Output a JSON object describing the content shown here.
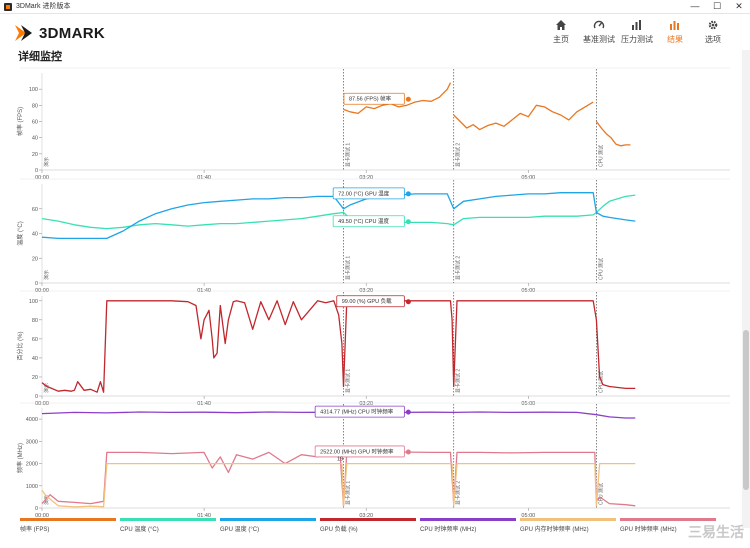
{
  "window": {
    "title": "3DMark 进阶版本",
    "minimize": "—",
    "maximize": "☐",
    "close": "✕"
  },
  "app": {
    "logo": "3DMARK"
  },
  "nav": [
    {
      "label": "主页",
      "icon": "home-icon"
    },
    {
      "label": "基准测试",
      "icon": "gauge-icon"
    },
    {
      "label": "压力测试",
      "icon": "stress-chart-icon"
    },
    {
      "label": "结果",
      "icon": "results-chart-icon",
      "active": true
    },
    {
      "label": "选项",
      "icon": "gear-icon"
    }
  ],
  "page": {
    "title": "详细监控"
  },
  "colors": {
    "accent": "#e87722"
  },
  "chart_data": [
    {
      "type": "line",
      "ylabel": "帧率 (FPS)",
      "ylim": [
        0,
        120
      ],
      "yticks": [
        0,
        20,
        40,
        60,
        80,
        100
      ],
      "xticks": [
        "00:00",
        "01:40",
        "03:20",
        "05:00"
      ],
      "xlim": [
        0,
        380
      ],
      "markers": [
        {
          "x": 0,
          "label": "演示"
        },
        {
          "x": 186,
          "label": "显卡测试 1"
        },
        {
          "x": 254,
          "label": "显卡测试 2"
        },
        {
          "x": 342,
          "label": "CPU 测试"
        }
      ],
      "series": [
        {
          "name": "帧率 (FPS)",
          "color": "#e87722",
          "x": [
            186,
            190,
            195,
            200,
            205,
            210,
            215,
            220,
            225,
            230,
            235,
            240,
            245,
            250,
            252
          ],
          "values": [
            75,
            72,
            70,
            78,
            76,
            80,
            82,
            78,
            80,
            84,
            86,
            85,
            90,
            100,
            108
          ]
        },
        {
          "name": "帧率 (FPS)",
          "color": "#e87722",
          "x": [
            254,
            258,
            262,
            266,
            270,
            275,
            280,
            285,
            290,
            295,
            300,
            305,
            310,
            315,
            320,
            325,
            330,
            335,
            340
          ],
          "values": [
            68,
            60,
            52,
            56,
            50,
            55,
            58,
            54,
            62,
            70,
            66,
            80,
            78,
            72,
            68,
            62,
            72,
            78,
            84
          ]
        },
        {
          "name": "帧率 (FPS)",
          "color": "#e87722",
          "x": [
            342,
            345,
            348,
            351,
            354,
            357,
            360,
            363
          ],
          "values": [
            60,
            52,
            45,
            40,
            32,
            30,
            31,
            31
          ]
        }
      ],
      "annotation": {
        "text": "87.56 (FPS) 帧率",
        "x": 226,
        "y": 87.56
      }
    },
    {
      "type": "line",
      "ylabel": "温度 (°C)",
      "ylim": [
        0,
        80
      ],
      "yticks": [
        0,
        20,
        40,
        60
      ],
      "xticks": [
        "00:00",
        "01:40",
        "03:20",
        "05:00"
      ],
      "xlim": [
        0,
        380
      ],
      "markers": [
        {
          "x": 0,
          "label": "演示"
        },
        {
          "x": 186,
          "label": "显卡测试 1"
        },
        {
          "x": 254,
          "label": "显卡测试 2"
        },
        {
          "x": 342,
          "label": "CPU 测试"
        }
      ],
      "series": [
        {
          "name": "CPU 温度 (°C)",
          "color": "#39e0b4",
          "x": [
            0,
            10,
            20,
            30,
            40,
            50,
            60,
            70,
            80,
            90,
            100,
            110,
            120,
            130,
            140,
            150,
            160,
            170,
            180,
            186,
            190,
            200,
            210,
            220,
            230,
            240,
            250,
            254,
            260,
            270,
            280,
            290,
            300,
            310,
            320,
            330,
            340,
            342,
            346,
            350,
            360,
            366
          ],
          "values": [
            52,
            50,
            47,
            45,
            44,
            45,
            47,
            48,
            47,
            46,
            47,
            48,
            48,
            49,
            50,
            51,
            52,
            54,
            56,
            57,
            52,
            50,
            49,
            49,
            49,
            49,
            48,
            47,
            52,
            53,
            53,
            53,
            53,
            54,
            54,
            54,
            55,
            57,
            62,
            66,
            70,
            71
          ]
        },
        {
          "name": "GPU 温度 (°C)",
          "color": "#1fa4e6",
          "x": [
            0,
            10,
            20,
            30,
            40,
            50,
            60,
            70,
            80,
            90,
            100,
            110,
            120,
            130,
            140,
            150,
            160,
            170,
            180,
            186,
            190,
            200,
            210,
            220,
            230,
            240,
            250,
            254,
            260,
            270,
            280,
            290,
            300,
            310,
            320,
            330,
            340,
            342,
            346,
            350,
            360,
            366
          ],
          "values": [
            37,
            36,
            36,
            36,
            36,
            42,
            50,
            56,
            60,
            63,
            65,
            66,
            67,
            68,
            68,
            69,
            69,
            70,
            70,
            60,
            63,
            68,
            70,
            71,
            72,
            72,
            72,
            60,
            66,
            68,
            70,
            71,
            72,
            72,
            73,
            73,
            73,
            57,
            54,
            53,
            51,
            50
          ]
        }
      ],
      "annotations": [
        {
          "text": "72.00 (°C) GPU 温度",
          "x": 226,
          "y": 72
        },
        {
          "text": "49.50 (°C) CPU 温度",
          "x": 226,
          "y": 49.5
        }
      ]
    },
    {
      "type": "line",
      "ylabel": "百分比 (%)",
      "ylim": [
        0,
        105
      ],
      "yticks": [
        0,
        20,
        40,
        60,
        80,
        100
      ],
      "xticks": [
        "00:00",
        "01:40",
        "03:20",
        "05:00"
      ],
      "xlim": [
        0,
        380
      ],
      "markers": [
        {
          "x": 0,
          "label": "演示"
        },
        {
          "x": 186,
          "label": "显卡测试 1"
        },
        {
          "x": 254,
          "label": "显卡测试 2"
        },
        {
          "x": 342,
          "label": "CPU 测试"
        }
      ],
      "series": [
        {
          "name": "GPU 负载 (%)",
          "color": "#c0282d",
          "x": [
            0,
            3,
            6,
            10,
            14,
            18,
            20,
            22,
            26,
            30,
            34,
            36,
            38,
            40,
            60,
            80,
            90,
            95,
            98,
            100,
            103,
            105,
            106,
            108,
            110,
            113,
            115,
            118,
            120,
            125,
            130,
            135,
            140,
            145,
            150,
            155,
            160,
            165,
            170,
            175,
            180,
            183,
            185,
            186,
            188,
            190,
            200,
            220,
            240,
            252,
            253,
            254,
            256,
            258,
            270,
            290,
            310,
            330,
            340,
            342,
            344,
            346,
            350,
            360,
            366
          ],
          "values": [
            14,
            10,
            8,
            5,
            6,
            5,
            6,
            15,
            6,
            7,
            4,
            15,
            4,
            100,
            100,
            100,
            99,
            95,
            60,
            80,
            90,
            60,
            40,
            45,
            95,
            55,
            80,
            99,
            100,
            98,
            70,
            99,
            80,
            100,
            75,
            99,
            80,
            90,
            100,
            98,
            100,
            85,
            55,
            10,
            100,
            100,
            100,
            100,
            100,
            100,
            80,
            10,
            100,
            100,
            100,
            100,
            100,
            100,
            100,
            80,
            20,
            12,
            10,
            8,
            8
          ]
        }
      ],
      "annotation": {
        "text": "99.00 (%) GPU 负载",
        "x": 226,
        "y": 99
      }
    },
    {
      "type": "line",
      "ylabel": "频率 (MHz)",
      "ylim": [
        0,
        4500
      ],
      "yticks": [
        0,
        1000,
        2000,
        3000,
        4000
      ],
      "xticks": [
        "00:00",
        "01:40",
        "03:20",
        "05:00"
      ],
      "xlim": [
        0,
        380
      ],
      "markers": [
        {
          "x": 0,
          "label": "演示"
        },
        {
          "x": 186,
          "label": "显卡测试 1"
        },
        {
          "x": 254,
          "label": "显卡测试 2"
        },
        {
          "x": 342,
          "label": "CPU 测试"
        }
      ],
      "series": [
        {
          "name": "CPU 时钟频率 (MHz)",
          "color": "#8a3fc9",
          "x": [
            0,
            20,
            40,
            60,
            80,
            100,
            120,
            140,
            160,
            180,
            186,
            200,
            220,
            240,
            254,
            270,
            290,
            310,
            330,
            342,
            350,
            360,
            366
          ],
          "values": [
            4250,
            4300,
            4280,
            4320,
            4300,
            4310,
            4290,
            4320,
            4300,
            4310,
            4300,
            4314,
            4300,
            4310,
            4300,
            4320,
            4300,
            4310,
            4300,
            4200,
            4100,
            4050,
            4050
          ]
        },
        {
          "name": "GPU 时钟频率 (MHz)",
          "color": "#e0798c",
          "x": [
            0,
            5,
            10,
            20,
            30,
            38,
            40,
            60,
            80,
            100,
            105,
            110,
            115,
            120,
            130,
            140,
            150,
            160,
            170,
            180,
            184,
            186,
            188,
            200,
            220,
            240,
            252,
            254,
            256,
            270,
            290,
            310,
            330,
            341,
            342,
            344,
            350,
            360,
            366
          ],
          "values": [
            200,
            600,
            300,
            250,
            200,
            300,
            2500,
            2500,
            2450,
            2500,
            1800,
            2300,
            1600,
            2400,
            2200,
            2500,
            2000,
            2400,
            2300,
            2500,
            2300,
            100,
            2500,
            2500,
            2520,
            2500,
            2500,
            200,
            2500,
            2500,
            2480,
            2500,
            2500,
            2500,
            300,
            500,
            200,
            150,
            100
          ]
        },
        {
          "name": "GPU 内存时钟频率 (MHz)",
          "color": "#f2c27d",
          "x": [
            0,
            2,
            5,
            10,
            20,
            30,
            38,
            40,
            60,
            80,
            100,
            120,
            140,
            160,
            180,
            185,
            186,
            188,
            200,
            220,
            240,
            253,
            254,
            256,
            270,
            290,
            310,
            330,
            341,
            342,
            344,
            350,
            360,
            366
          ],
          "values": [
            800,
            600,
            400,
            100,
            50,
            80,
            60,
            2000,
            2000,
            2000,
            2000,
            2000,
            2000,
            2000,
            2000,
            2000,
            100,
            2000,
            2000,
            2000,
            2000,
            2000,
            100,
            2000,
            2000,
            2000,
            2000,
            2000,
            2000,
            100,
            2000,
            2000,
            2000,
            2000
          ]
        }
      ],
      "annotations": [
        {
          "text": "4314.77 (MHz) CPU 时钟频率",
          "x": 226,
          "y": 4314.77
        },
        {
          "text": "2522.00 (MHz) GPU 时钟频率",
          "x": 226,
          "y": 2522
        },
        {
          "text": "19",
          "x": 182,
          "y": 2000
        }
      ]
    }
  ],
  "legend": [
    {
      "label": "帧率 (FPS)",
      "color": "#e87722"
    },
    {
      "label": "CPU 温度 (°C)",
      "color": "#39e0b4"
    },
    {
      "label": "GPU 温度 (°C)",
      "color": "#1fa4e6"
    },
    {
      "label": "GPU 负载 (%)",
      "color": "#c0282d"
    },
    {
      "label": "CPU 时钟频率 (MHz)",
      "color": "#8a3fc9"
    },
    {
      "label": "GPU 内存时钟频率 (MHz)",
      "color": "#f2c27d"
    },
    {
      "label": "GPU 时钟频率 (MHz)",
      "color": "#e0798c"
    }
  ],
  "watermark": "三易生活"
}
